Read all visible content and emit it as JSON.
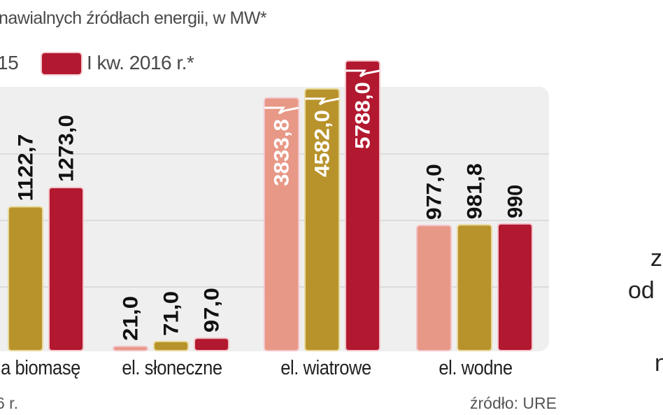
{
  "chart_data": {
    "type": "bar",
    "title": "nawialnych źródłach energii, w MW*",
    "ylabel": "MW",
    "categories": [
      "a biomasę",
      "el. słoneczne",
      "el. wiatrowe",
      "el. wodne"
    ],
    "series": [
      {
        "name": "",
        "color": "#e89886",
        "values": [
          null,
          21.0,
          3833.8,
          977.0
        ],
        "labels": [
          "",
          "21,0",
          "3833,8",
          "977,0"
        ]
      },
      {
        "name": "15",
        "color": "#b8932c",
        "values": [
          1122.7,
          71.0,
          4582.0,
          981.8
        ],
        "labels": [
          "1122,7",
          "71,0",
          "4582,0",
          "981,8"
        ]
      },
      {
        "name": "I kw. 2016 r.*",
        "color": "#b2182f",
        "values": [
          1273.0,
          97.0,
          5788.0,
          990
        ],
        "labels": [
          "1273,0",
          "97,0",
          "5788,0",
          "990"
        ]
      }
    ],
    "broken_axis_categories": [
      "el. wiatrowe"
    ],
    "grid": true,
    "legend": "top"
  },
  "footnote": "6 r.",
  "source": "źródło: URE",
  "side_text": [
    "z",
    "od",
    "n"
  ]
}
